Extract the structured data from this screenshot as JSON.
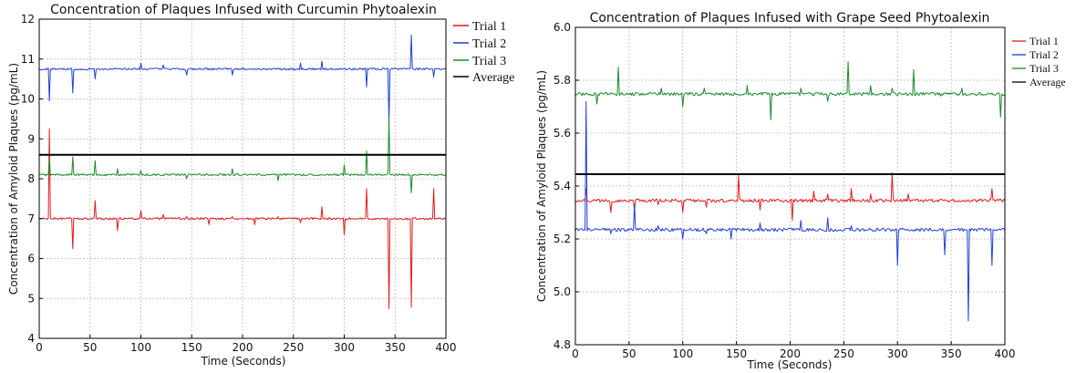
{
  "chart_data": [
    {
      "type": "line",
      "title": "Concentration of Plaques Infused with Curcumin Phytoalexin",
      "xlabel": "Time (Seconds)",
      "ylabel": "Concentration of Amyloid Plaques (pg/mL)",
      "xlim": [
        0,
        400
      ],
      "ylim": [
        4,
        12
      ],
      "xticks": [
        "0",
        "50",
        "100",
        "150",
        "200",
        "250",
        "300",
        "350",
        "400"
      ],
      "yticks": [
        "4",
        "5",
        "6",
        "7",
        "8",
        "9",
        "10",
        "11",
        "12"
      ],
      "grid": true,
      "legend_placement": "outside-right",
      "series": [
        {
          "name": "Trial 1",
          "color": "#e41a1c",
          "baseline": 7.0,
          "noise": 0.025,
          "spikes": [
            [
              10,
              9.25
            ],
            [
              33,
              6.25
            ],
            [
              55,
              7.45
            ],
            [
              77,
              6.7
            ],
            [
              100,
              7.2
            ],
            [
              122,
              7.1
            ],
            [
              145,
              7.05
            ],
            [
              167,
              6.85
            ],
            [
              190,
              7.05
            ],
            [
              212,
              6.85
            ],
            [
              235,
              7.05
            ],
            [
              257,
              6.9
            ],
            [
              278,
              7.3
            ],
            [
              300,
              6.6
            ],
            [
              322,
              7.75
            ],
            [
              344,
              4.75
            ],
            [
              366,
              4.78
            ],
            [
              388,
              7.75
            ]
          ]
        },
        {
          "name": "Trial 2",
          "color": "#1f3fd6",
          "baseline": 10.75,
          "noise": 0.025,
          "spikes": [
            [
              10,
              9.95
            ],
            [
              33,
              10.15
            ],
            [
              55,
              10.5
            ],
            [
              100,
              10.9
            ],
            [
              122,
              10.85
            ],
            [
              145,
              10.6
            ],
            [
              190,
              10.6
            ],
            [
              257,
              10.9
            ],
            [
              278,
              10.95
            ],
            [
              322,
              10.3
            ],
            [
              344,
              9.4
            ],
            [
              366,
              11.6
            ],
            [
              388,
              10.55
            ]
          ]
        },
        {
          "name": "Trial 3",
          "color": "#1a8a2a",
          "baseline": 8.1,
          "noise": 0.025,
          "spikes": [
            [
              10,
              8.5
            ],
            [
              33,
              8.55
            ],
            [
              55,
              8.45
            ],
            [
              77,
              8.25
            ],
            [
              100,
              8.2
            ],
            [
              145,
              8.0
            ],
            [
              190,
              8.25
            ],
            [
              235,
              7.95
            ],
            [
              300,
              8.35
            ],
            [
              322,
              8.7
            ],
            [
              344,
              9.5
            ],
            [
              366,
              7.65
            ]
          ]
        },
        {
          "name": "Average",
          "color": "#000000",
          "flat": 8.6
        }
      ]
    },
    {
      "type": "line",
      "title": "Concentration of Plaques Infused with Grape Seed Phytoalexin",
      "xlabel": "Time (Seconds)",
      "ylabel": "Concentration of Amyloid Plaques (pg/mL)",
      "xlim": [
        0,
        400
      ],
      "ylim": [
        4.8,
        6.0
      ],
      "xticks": [
        "0",
        "50",
        "100",
        "150",
        "200",
        "250",
        "300",
        "350",
        "400"
      ],
      "yticks": [
        "4.8",
        "5.0",
        "5.2",
        "5.4",
        "5.6",
        "5.8",
        "6.0"
      ],
      "grid": true,
      "legend_placement": "outside-right",
      "series": [
        {
          "name": "Trial 1",
          "color": "#e41a1c",
          "baseline": 5.345,
          "noise": 0.006,
          "spikes": [
            [
              10,
              5.39
            ],
            [
              33,
              5.3
            ],
            [
              55,
              5.31
            ],
            [
              77,
              5.33
            ],
            [
              100,
              5.3
            ],
            [
              122,
              5.32
            ],
            [
              152,
              5.44
            ],
            [
              172,
              5.31
            ],
            [
              202,
              5.27
            ],
            [
              222,
              5.38
            ],
            [
              235,
              5.37
            ],
            [
              257,
              5.39
            ],
            [
              275,
              5.37
            ],
            [
              295,
              5.45
            ],
            [
              310,
              5.37
            ],
            [
              388,
              5.39
            ]
          ]
        },
        {
          "name": "Trial 2",
          "color": "#1f3fd6",
          "baseline": 5.235,
          "noise": 0.006,
          "spikes": [
            [
              10,
              5.72
            ],
            [
              33,
              5.22
            ],
            [
              55,
              5.33
            ],
            [
              77,
              5.25
            ],
            [
              100,
              5.2
            ],
            [
              122,
              5.22
            ],
            [
              145,
              5.2
            ],
            [
              172,
              5.26
            ],
            [
              210,
              5.27
            ],
            [
              235,
              5.28
            ],
            [
              257,
              5.25
            ],
            [
              300,
              5.1
            ],
            [
              344,
              5.14
            ],
            [
              366,
              4.89
            ],
            [
              388,
              5.1
            ]
          ]
        },
        {
          "name": "Trial 3",
          "color": "#1a8a2a",
          "baseline": 5.748,
          "noise": 0.006,
          "spikes": [
            [
              20,
              5.71
            ],
            [
              40,
              5.85
            ],
            [
              80,
              5.77
            ],
            [
              100,
              5.7
            ],
            [
              120,
              5.77
            ],
            [
              160,
              5.78
            ],
            [
              182,
              5.65
            ],
            [
              210,
              5.77
            ],
            [
              235,
              5.72
            ],
            [
              254,
              5.87
            ],
            [
              275,
              5.78
            ],
            [
              295,
              5.77
            ],
            [
              315,
              5.84
            ],
            [
              340,
              5.74
            ],
            [
              360,
              5.77
            ],
            [
              396,
              5.66
            ]
          ]
        },
        {
          "name": "Average",
          "color": "#000000",
          "flat": 5.445
        }
      ]
    }
  ]
}
